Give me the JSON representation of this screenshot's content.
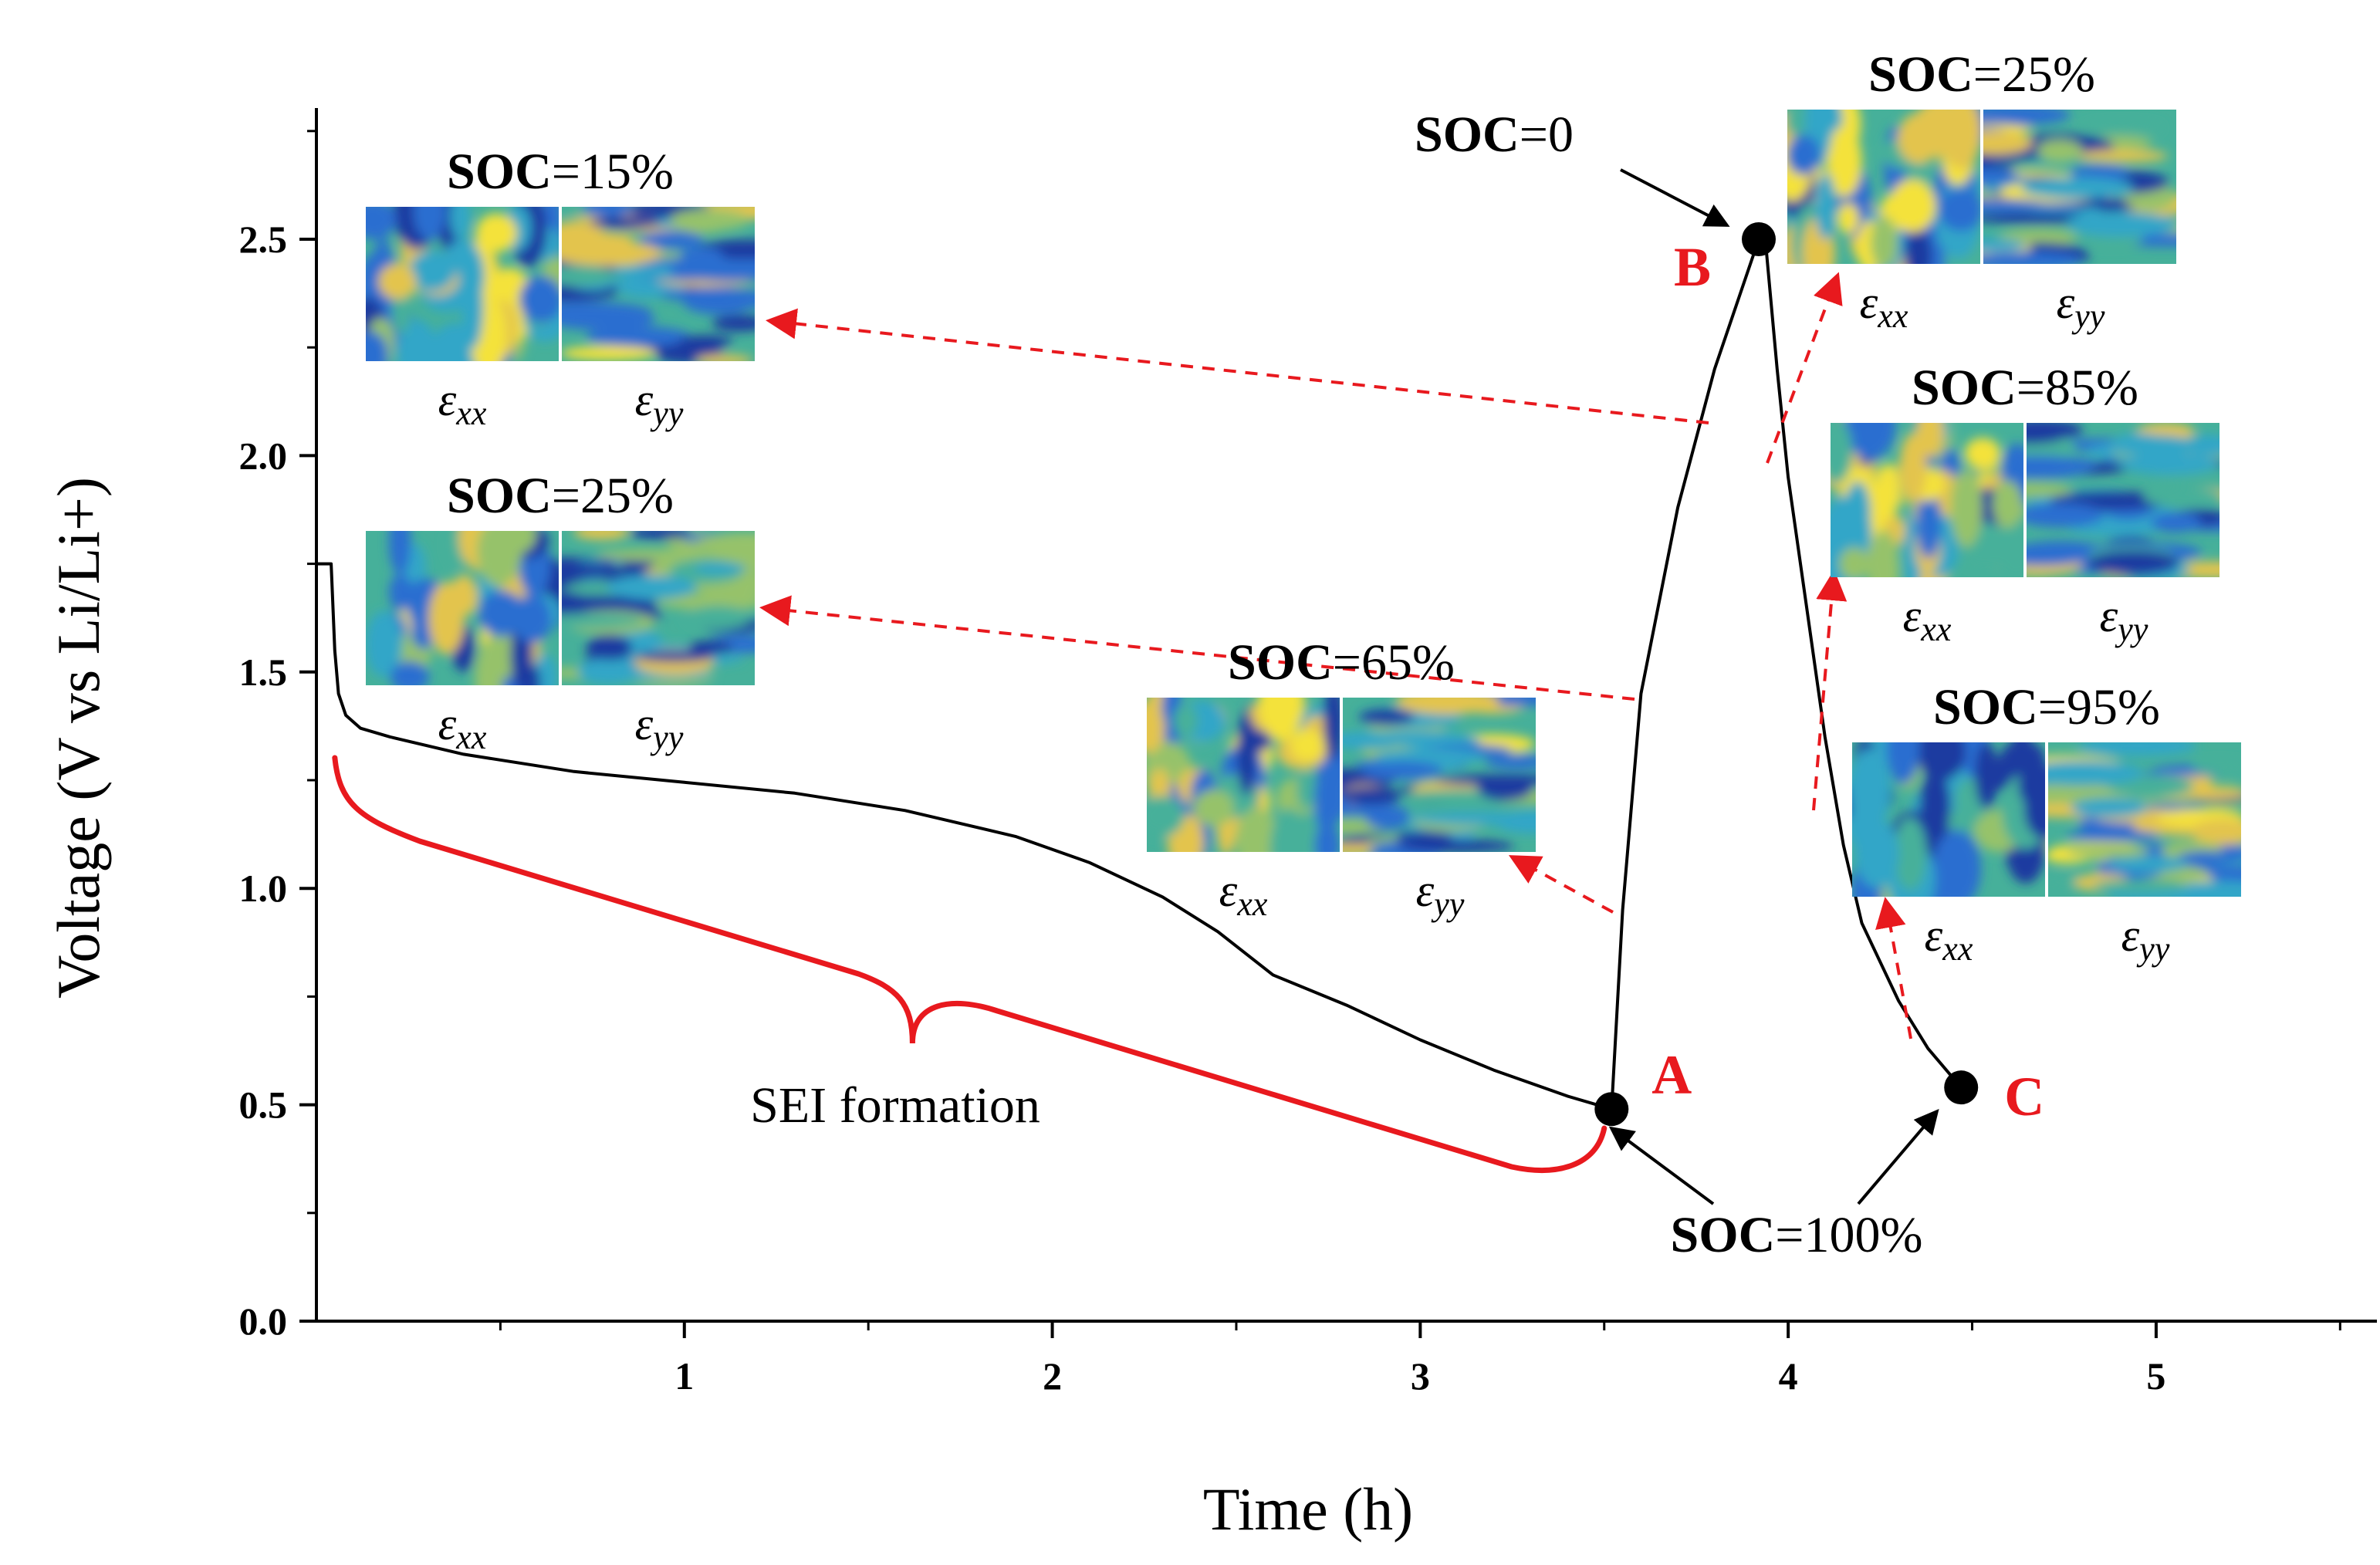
{
  "chart_data": {
    "type": "line",
    "xlabel": "Time (h)",
    "ylabel": "Voltage (V vs Li/Li+)",
    "xlim": [
      0,
      5.6
    ],
    "ylim": [
      0,
      2.8
    ],
    "xticks": [
      "1",
      "2",
      "3",
      "4",
      "5"
    ],
    "yticks": [
      "0.0",
      "0.5",
      "1.0",
      "1.5",
      "2.0",
      "2.5"
    ],
    "grid": false,
    "series": [
      {
        "x": [
          0,
          0.04,
          0.05,
          0.06,
          0.08,
          0.12,
          0.2,
          0.4,
          0.7,
          1.0,
          1.3,
          1.6,
          1.9,
          2.1,
          2.3,
          2.45,
          2.6,
          2.8,
          3.0,
          3.2,
          3.4,
          3.52,
          3.55,
          3.6,
          3.7,
          3.8,
          3.88,
          3.92,
          3.94,
          3.97,
          4.0,
          4.05,
          4.1,
          4.15,
          4.2,
          4.3,
          4.38,
          4.47
        ],
        "y": [
          1.75,
          1.75,
          1.55,
          1.45,
          1.4,
          1.37,
          1.35,
          1.31,
          1.27,
          1.245,
          1.22,
          1.18,
          1.12,
          1.06,
          0.98,
          0.9,
          0.8,
          0.73,
          0.65,
          0.58,
          0.52,
          0.49,
          0.95,
          1.45,
          1.88,
          2.2,
          2.4,
          2.5,
          2.48,
          2.2,
          1.95,
          1.65,
          1.35,
          1.1,
          0.92,
          0.74,
          0.63,
          0.54
        ]
      }
    ],
    "points": [
      {
        "label": "A",
        "x": 3.52,
        "y": 0.49
      },
      {
        "label": "B",
        "x": 3.92,
        "y": 2.5
      },
      {
        "label": "C",
        "x": 4.47,
        "y": 0.54
      }
    ],
    "annotations": {
      "soc_0": "=0",
      "soc_100": "=100%",
      "sei": "SEI formation"
    },
    "insets": [
      {
        "soc": "=15%"
      },
      {
        "soc": "=25%"
      },
      {
        "soc": "=65%"
      },
      {
        "soc": "=25%"
      },
      {
        "soc": "=85%"
      },
      {
        "soc": "=95%"
      }
    ],
    "soc_bold": "SOC",
    "strain_xx": "ε",
    "strain_xx_sub": "xx",
    "strain_yy": "ε",
    "strain_yy_sub": "yy"
  },
  "colors": {
    "curve": "#000000",
    "accent_red": "#e8191e",
    "colormap": [
      "#1a3aa0",
      "#2a6ed0",
      "#32a6c8",
      "#46b09a",
      "#96c26a",
      "#e3c44e",
      "#f4e23a"
    ]
  }
}
